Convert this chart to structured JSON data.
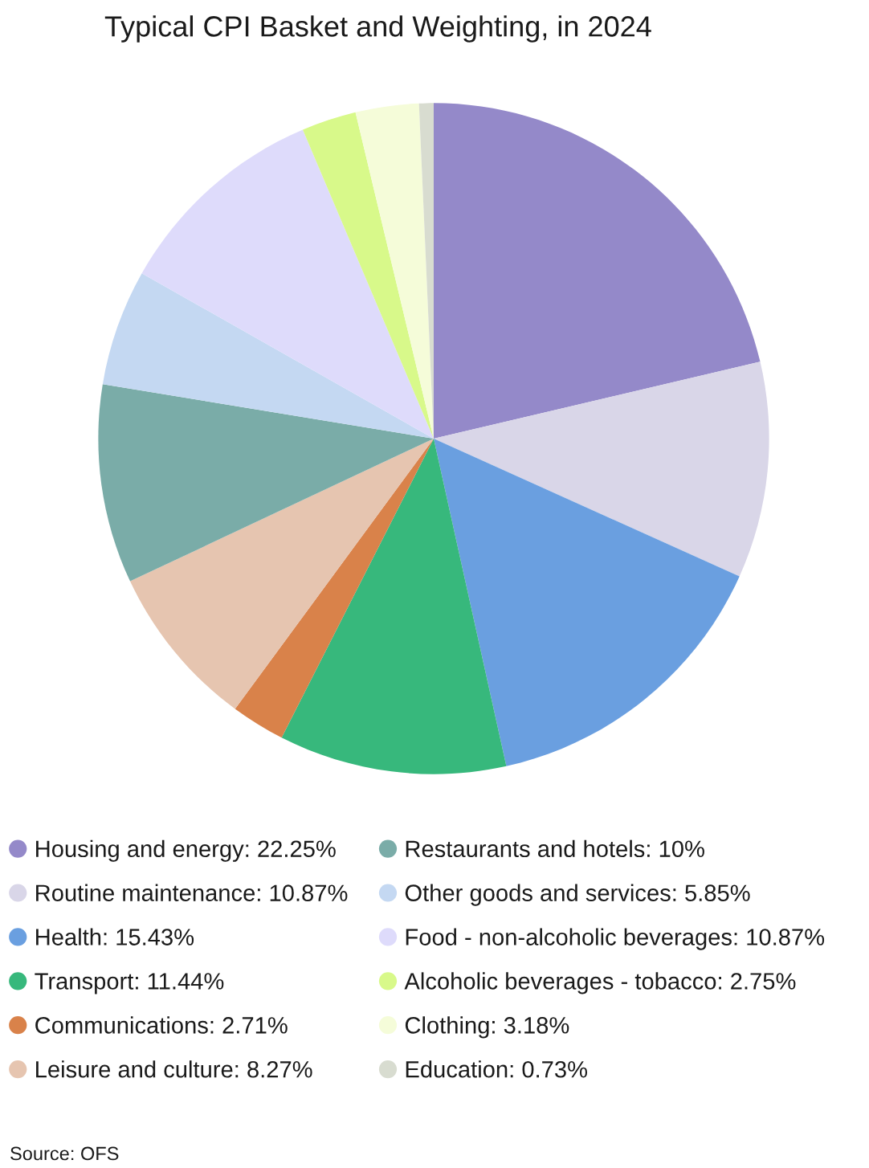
{
  "chart_data": {
    "type": "pie",
    "title": "Typical CPI Basket and Weighting, in 2024",
    "categories": [
      "Housing and energy",
      "Routine maintenance",
      "Health",
      "Transport",
      "Communications",
      "Leisure and culture",
      "Restaurants and hotels",
      "Other goods and services",
      "Food - non-alcoholic beverages",
      "Alcoholic beverages - tobacco",
      "Clothing",
      "Education"
    ],
    "values": [
      22.25,
      10.87,
      15.43,
      11.44,
      2.71,
      8.27,
      10,
      5.85,
      10.87,
      2.75,
      3.18,
      0.73
    ],
    "value_labels": [
      "22.25%",
      "10.87%",
      "15.43%",
      "11.44%",
      "2.71%",
      "8.27%",
      "10%",
      "5.85%",
      "10.87%",
      "2.75%",
      "3.18%",
      "0.73%"
    ],
    "colors": [
      "#9489c9",
      "#d9d6e8",
      "#6a9fe0",
      "#37b87c",
      "#d9824a",
      "#e6c5b0",
      "#7aaca8",
      "#c4d8f2",
      "#dedbfb",
      "#d8f98a",
      "#f5fcd9",
      "#d8dcd0"
    ],
    "legend": "bottom",
    "annotations": [
      "Source: OFS"
    ]
  }
}
